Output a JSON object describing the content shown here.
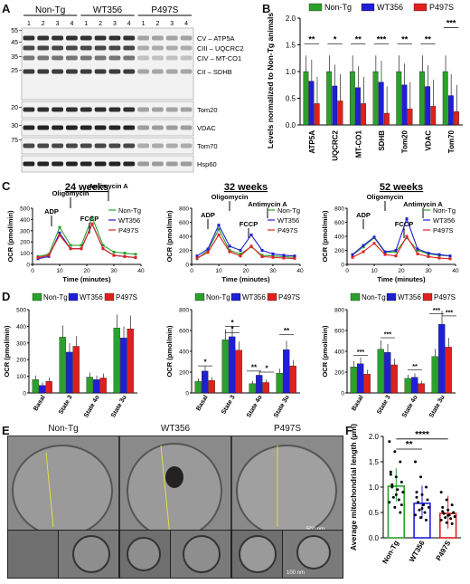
{
  "panel_letters": {
    "a": "A",
    "b": "B",
    "c": "C",
    "d": "D",
    "e": "E",
    "f": "F"
  },
  "colors": {
    "nontg": "#2ca02c",
    "wt356": "#1f1fd6",
    "p497s": "#e0201e"
  },
  "panel_a": {
    "groups": [
      "Non-Tg",
      "WT356",
      "P497S"
    ],
    "lanes": [
      "1",
      "2",
      "3",
      "4",
      "1",
      "2",
      "3",
      "4",
      "1",
      "2",
      "3",
      "4"
    ],
    "mw_markers": [
      "55",
      "45",
      "35",
      "25",
      "20",
      "30",
      "75"
    ],
    "bands": [
      "CV – ATP5A",
      "CIII – UQCRC2",
      "CIV – MT-CO1",
      "CII – SDHB",
      "Tom20",
      "VDAC",
      "Tom70",
      "Hsp60"
    ]
  },
  "panel_b": {
    "chart_data": {
      "type": "bar",
      "ylabel": "Levels normalized to Non-Tg animals",
      "ylim": [
        0,
        2.0
      ],
      "yticks": [
        "0.0",
        "0.5",
        "1.0",
        "1.5",
        "2.0"
      ],
      "legend_position": "top",
      "categories": [
        "ATP5A",
        "UQCRC2",
        "MT-CO1",
        "SDHB",
        "Tom20",
        "VDAC",
        "Tom70"
      ],
      "series": [
        {
          "name": "Non-Tg",
          "values": [
            1.0,
            1.0,
            1.0,
            1.0,
            1.0,
            1.0,
            1.0
          ]
        },
        {
          "name": "WT356",
          "values": [
            0.82,
            0.73,
            0.7,
            0.8,
            0.75,
            0.72,
            0.55
          ]
        },
        {
          "name": "P497S",
          "values": [
            0.4,
            0.45,
            0.4,
            0.22,
            0.3,
            0.35,
            0.25
          ]
        }
      ],
      "significance": [
        "**",
        "*",
        "**",
        "***",
        "**",
        "**",
        "***"
      ]
    }
  },
  "panel_c": {
    "chart_data": [
      {
        "type": "line",
        "title": "24 weeks",
        "xlabel": "Time (minutes)",
        "ylabel": "OCR (pmol/min)",
        "xlim": [
          0,
          40
        ],
        "ylim": [
          0,
          500
        ],
        "xticks": [
          "0",
          "10",
          "20",
          "30",
          "40"
        ],
        "yticks": [
          "0",
          "100",
          "200",
          "300",
          "400",
          "500"
        ],
        "annotations": [
          "ADP",
          "Oligomycin",
          "FCCP",
          "Antimycin A"
        ],
        "x": [
          2,
          6,
          10,
          14,
          18,
          22,
          26,
          30,
          34,
          38
        ],
        "series": [
          {
            "name": "Non-Tg",
            "values": [
              70,
              90,
              330,
              170,
              170,
              420,
              170,
              110,
              100,
              90
            ]
          },
          {
            "name": "WT356",
            "values": [
              50,
              70,
              280,
              140,
              140,
              360,
              140,
              80,
              70,
              60
            ]
          },
          {
            "name": "P497S",
            "values": [
              60,
              80,
              260,
              140,
              140,
              360,
              140,
              80,
              70,
              60
            ]
          }
        ]
      },
      {
        "type": "line",
        "title": "32 weeks",
        "xlabel": "Time (minutes)",
        "ylabel": "OCR (pmol/min)",
        "xlim": [
          0,
          40
        ],
        "ylim": [
          0,
          800
        ],
        "xticks": [
          "0",
          "10",
          "20",
          "30",
          "40"
        ],
        "yticks": [
          "0",
          "200",
          "400",
          "600",
          "800"
        ],
        "annotations": [
          "ADP",
          "Oligomycin",
          "FCCP",
          "Antimycin A"
        ],
        "x": [
          2,
          6,
          10,
          14,
          18,
          22,
          26,
          30,
          34,
          38
        ],
        "series": [
          {
            "name": "Non-Tg",
            "values": [
              80,
              200,
              500,
              200,
              150,
              250,
              130,
              120,
              110,
              100
            ]
          },
          {
            "name": "WT356",
            "values": [
              120,
              220,
              560,
              260,
              200,
              420,
              200,
              150,
              130,
              120
            ]
          },
          {
            "name": "P497S",
            "values": [
              90,
              170,
              420,
              180,
              120,
              260,
              110,
              100,
              90,
              85
            ]
          }
        ]
      },
      {
        "type": "line",
        "title": "52 weeks",
        "xlabel": "Time (minutes)",
        "ylabel": "OCR (pmol/min)",
        "xlim": [
          0,
          40
        ],
        "ylim": [
          0,
          800
        ],
        "xticks": [
          "0",
          "10",
          "20",
          "30",
          "40"
        ],
        "yticks": [
          "0",
          "200",
          "400",
          "600",
          "800"
        ],
        "annotations": [
          "ADP",
          "Oligomycin",
          "FCCP",
          "Antimycin A"
        ],
        "x": [
          2,
          6,
          10,
          14,
          18,
          22,
          26,
          30,
          34,
          38
        ],
        "series": [
          {
            "name": "Non-Tg",
            "values": [
              130,
              250,
              380,
              170,
              180,
              380,
              200,
              150,
              130,
              120
            ]
          },
          {
            "name": "WT356",
            "values": [
              140,
              270,
              390,
              180,
              200,
              650,
              220,
              160,
              140,
              120
            ]
          },
          {
            "name": "P497S",
            "values": [
              100,
              180,
              300,
              140,
              120,
              400,
              150,
              110,
              90,
              80
            ]
          }
        ]
      }
    ]
  },
  "panel_d": {
    "chart_data": [
      {
        "type": "bar",
        "ylabel": "OCR (pmol/min)",
        "ylim": [
          0,
          500
        ],
        "yticks": [
          "0",
          "100",
          "200",
          "300",
          "400",
          "500"
        ],
        "categories": [
          "Basal",
          "State 3",
          "State 4o",
          "State 3u"
        ],
        "series": [
          {
            "name": "Non-Tg",
            "values": [
              80,
              335,
              95,
              390
            ]
          },
          {
            "name": "WT356",
            "values": [
              45,
              245,
              80,
              330
            ]
          },
          {
            "name": "P497S",
            "values": [
              70,
              280,
              90,
              385
            ]
          }
        ],
        "significance": []
      },
      {
        "type": "bar",
        "ylabel": "OCR (pmol/min)",
        "ylim": [
          0,
          800
        ],
        "yticks": [
          "0",
          "200",
          "400",
          "600",
          "800"
        ],
        "categories": [
          "Basal",
          "State 3",
          "State 4o",
          "State 3u"
        ],
        "series": [
          {
            "name": "Non-Tg",
            "values": [
              110,
              510,
              90,
              190
            ]
          },
          {
            "name": "WT356",
            "values": [
              210,
              540,
              170,
              415
            ]
          },
          {
            "name": "P497S",
            "values": [
              120,
              410,
              100,
              260
            ]
          }
        ],
        "significance": [
          "*",
          "*",
          "*",
          "**",
          "*",
          "**"
        ]
      },
      {
        "type": "bar",
        "ylabel": "OCR (pmol/min)",
        "ylim": [
          0,
          800
        ],
        "yticks": [
          "0",
          "200",
          "400",
          "600",
          "800"
        ],
        "categories": [
          "Basal",
          "State 3",
          "State 4o",
          "State 3u"
        ],
        "series": [
          {
            "name": "Non-Tg",
            "values": [
              250,
              420,
              140,
              350
            ]
          },
          {
            "name": "WT356",
            "values": [
              280,
              390,
              150,
              660
            ]
          },
          {
            "name": "P497S",
            "values": [
              180,
              270,
              90,
              440
            ]
          }
        ],
        "significance": [
          "***",
          "***",
          "**",
          "***",
          "***"
        ]
      }
    ],
    "legend": [
      "Non-Tg",
      "WT356",
      "P497S"
    ]
  },
  "panel_e": {
    "labels": [
      "Non-Tg",
      "WT356",
      "P497S"
    ],
    "scale_bars": [
      "500 nm",
      "100 nm"
    ]
  },
  "panel_f": {
    "chart_data": {
      "type": "bar",
      "ylabel": "Average mitochondrial length (µm)",
      "ylim": [
        0,
        2.0
      ],
      "yticks": [
        "0.0",
        "0.5",
        "1.0",
        "1.5",
        "2.0"
      ],
      "categories": [
        "Non-Tg",
        "WT356",
        "P497S"
      ],
      "values": [
        1.02,
        0.68,
        0.48
      ],
      "significance": [
        "**",
        "****"
      ]
    }
  }
}
